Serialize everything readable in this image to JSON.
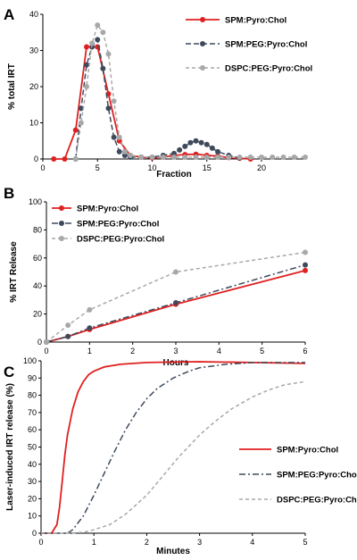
{
  "chart_data": [
    {
      "panel": "A",
      "type": "line",
      "xlabel": "Fraction",
      "ylabel": "% total IRT",
      "xlim": [
        0,
        24
      ],
      "ylim": [
        0,
        40
      ],
      "xticks": [
        0,
        5,
        10,
        15,
        20
      ],
      "yticks": [
        0,
        10,
        20,
        30,
        40
      ],
      "legend_position": "top-right",
      "series": [
        {
          "name": "SPM:Pyro:Chol",
          "color": "#e02020",
          "dash": "",
          "marker_color": "#e02020",
          "x": [
            1,
            2,
            3,
            4,
            5,
            6,
            7,
            8,
            9,
            10,
            11,
            12,
            13,
            14,
            15,
            16,
            17,
            18,
            19
          ],
          "y": [
            0,
            0,
            8,
            31,
            31,
            18,
            5,
            1,
            0.5,
            0.3,
            0.5,
            1,
            1.2,
            1.3,
            1,
            0.8,
            0.4,
            0.2,
            0
          ]
        },
        {
          "name": "SPM:PEG:Pyro:Chol",
          "color": "#3e4a5c",
          "dash": "6,3",
          "marker_color": "#3e4a5c",
          "x": [
            3,
            3.5,
            4,
            4.5,
            5,
            5.5,
            6,
            6.5,
            7,
            7.5,
            8,
            9,
            10,
            11,
            12,
            12.5,
            13,
            13.5,
            14,
            14.5,
            15,
            15.5,
            16,
            17,
            18
          ],
          "y": [
            0,
            14,
            26,
            31,
            33,
            25,
            14,
            6,
            2,
            1,
            0.5,
            0.5,
            0.5,
            1,
            1.5,
            2.5,
            3.5,
            4.5,
            5,
            4.5,
            4,
            3,
            2,
            1,
            0.3
          ]
        },
        {
          "name": "DSPC:PEG:Pyro:Chol",
          "color": "#a8a8a8",
          "dash": "4,3",
          "marker_color": "#a8a8a8",
          "x": [
            3,
            3.5,
            4,
            4.5,
            5,
            5.5,
            6,
            6.5,
            7,
            7.5,
            8,
            9,
            10,
            11,
            12,
            13,
            14,
            15,
            16,
            17,
            18,
            19,
            20,
            21,
            22,
            23,
            24
          ],
          "y": [
            0,
            10,
            20,
            32,
            37,
            35,
            29,
            16,
            6,
            2,
            1,
            0.5,
            0.5,
            0.5,
            0.5,
            0.5,
            0.5,
            0.5,
            0.5,
            0.5,
            0.5,
            0.5,
            0.5,
            0.5,
            0.5,
            0.5,
            0.5
          ]
        }
      ]
    },
    {
      "panel": "B",
      "type": "line",
      "xlabel": "Hours",
      "ylabel": "% IRT Release",
      "xlim": [
        0,
        6
      ],
      "ylim": [
        0,
        100
      ],
      "xticks": [
        0,
        1,
        2,
        3,
        4,
        5,
        6
      ],
      "yticks": [
        0,
        20,
        40,
        60,
        80,
        100
      ],
      "legend_position": "top-left",
      "series": [
        {
          "name": "SPM:Pyro:Chol",
          "color": "#e02020",
          "dash": "",
          "marker_color": "#e02020",
          "x": [
            0,
            0.5,
            1,
            3,
            6
          ],
          "y": [
            0,
            4,
            9,
            27,
            51
          ]
        },
        {
          "name": "SPM:PEG:Pyro:Chol",
          "color": "#3e4a5c",
          "dash": "7,3,2,3",
          "marker_color": "#3e4a5c",
          "x": [
            0,
            0.5,
            1,
            3,
            6
          ],
          "y": [
            0,
            4,
            10,
            28,
            55
          ]
        },
        {
          "name": "DSPC:PEG:Pyro:Chol",
          "color": "#a8a8a8",
          "dash": "4,3",
          "marker_color": "#a8a8a8",
          "x": [
            0,
            0.5,
            1,
            3,
            6
          ],
          "y": [
            0,
            12,
            23,
            50,
            64
          ]
        }
      ]
    },
    {
      "panel": "C",
      "type": "line",
      "xlabel": "Minutes",
      "ylabel": "Laser-induced IRT release (%)",
      "xlim": [
        0,
        5
      ],
      "ylim": [
        0,
        100
      ],
      "xticks": [
        0,
        1,
        2,
        3,
        4,
        5
      ],
      "yticks": [
        0,
        10,
        20,
        30,
        40,
        50,
        60,
        70,
        80,
        90,
        100
      ],
      "legend_position": "bottom-right",
      "series": [
        {
          "name": "SPM:Pyro:Chol",
          "color": "#e02020",
          "dash": "",
          "x": [
            0,
            0.2,
            0.3,
            0.35,
            0.4,
            0.45,
            0.5,
            0.6,
            0.7,
            0.8,
            0.9,
            1.0,
            1.2,
            1.5,
            2.0,
            2.5,
            3.0,
            4.0,
            5.0
          ],
          "y": [
            0,
            0,
            5,
            15,
            30,
            45,
            57,
            72,
            82,
            88,
            92,
            94,
            96.5,
            98,
            99,
            99.3,
            99.5,
            99,
            98.5
          ]
        },
        {
          "name": "SPM:PEG:Pyro:Chol",
          "color": "#3e4a5c",
          "dash": "7,3,2,3",
          "x": [
            0,
            0.5,
            0.6,
            0.8,
            1.0,
            1.2,
            1.4,
            1.6,
            1.8,
            2.0,
            2.2,
            2.5,
            2.8,
            3.0,
            3.5,
            4.0,
            4.5,
            5.0
          ],
          "y": [
            0,
            0,
            2,
            10,
            22,
            35,
            48,
            60,
            70,
            78,
            84,
            90,
            94,
            96,
            98,
            99,
            99,
            99
          ]
        },
        {
          "name": "DSPC:PEG:Pyro:Chol",
          "color": "#a8a8a8",
          "dash": "4,3",
          "x": [
            0,
            0.5,
            0.8,
            1.0,
            1.3,
            1.6,
            2.0,
            2.3,
            2.6,
            3.0,
            3.3,
            3.6,
            4.0,
            4.3,
            4.6,
            5.0
          ],
          "y": [
            0,
            0,
            0.5,
            2,
            5,
            11,
            22,
            33,
            44,
            57,
            65,
            72,
            79,
            83,
            86,
            88
          ]
        }
      ]
    }
  ]
}
